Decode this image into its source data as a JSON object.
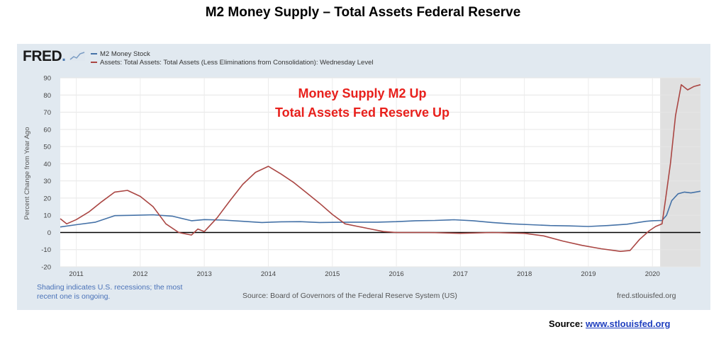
{
  "page_title": "M2 Money Supply – Total Assets Federal Reserve",
  "fred": {
    "logo_text": "FRED",
    "logo_dot": ".",
    "legend": [
      {
        "label": "M2 Money Stock",
        "color": "#4572a7"
      },
      {
        "label": "Assets: Total Assets: Total Assets (Less Eliminations from Consolidation): Wednesday Level",
        "color": "#aa4643"
      }
    ],
    "footer_note": "Shading indicates U.S. recessions; the most recent one is ongoing.",
    "footer_note_line1": "Shading indicates U.S. recessions; the most",
    "footer_note_line2": "recent one is ongoing.",
    "footer_source": "Source: Board of Governors of the Federal Reserve System (US)",
    "footer_url": "fred.stlouisfed.org"
  },
  "source_line": {
    "prefix": "Source: ",
    "link_text": "www.stlouisfed.org"
  },
  "chart_data": {
    "type": "line",
    "ylabel": "Percent Change from Year Ago",
    "ylim": [
      -20,
      90
    ],
    "yticks": [
      -20,
      -10,
      0,
      10,
      20,
      30,
      40,
      50,
      60,
      70,
      80,
      90
    ],
    "xlim": [
      2010.75,
      2020.75
    ],
    "xticks": [
      2011,
      2012,
      2013,
      2014,
      2015,
      2016,
      2017,
      2018,
      2019,
      2020
    ],
    "grid": true,
    "recession_shading": {
      "start": 2020.12,
      "end": 2020.75,
      "color": "#e0e0e0"
    },
    "zero_line": true,
    "annotations": [
      {
        "text": "Money Supply M2 Up",
        "color": "#e8201c"
      },
      {
        "text": "Total Assets Fed Reserve Up",
        "color": "#e8201c"
      }
    ],
    "series": [
      {
        "name": "M2 Money Stock",
        "color": "#4572a7",
        "x": [
          2010.75,
          2011.0,
          2011.3,
          2011.6,
          2011.9,
          2012.2,
          2012.5,
          2012.8,
          2013.0,
          2013.3,
          2013.6,
          2013.9,
          2014.2,
          2014.5,
          2014.8,
          2015.1,
          2015.4,
          2015.7,
          2016.0,
          2016.3,
          2016.6,
          2016.9,
          2017.2,
          2017.5,
          2017.8,
          2018.1,
          2018.4,
          2018.7,
          2019.0,
          2019.3,
          2019.6,
          2019.9,
          2020.0,
          2020.15,
          2020.22,
          2020.3,
          2020.4,
          2020.5,
          2020.6,
          2020.75
        ],
        "y": [
          3.2,
          4.5,
          6.0,
          9.8,
          10.0,
          10.3,
          9.5,
          6.8,
          7.5,
          7.2,
          6.5,
          5.8,
          6.2,
          6.3,
          5.8,
          5.9,
          6.0,
          6.0,
          6.3,
          6.8,
          7.0,
          7.4,
          6.8,
          5.8,
          5.0,
          4.5,
          4.0,
          3.8,
          3.5,
          4.0,
          4.8,
          6.5,
          6.8,
          7.0,
          10.0,
          18.5,
          22.5,
          23.5,
          23.0,
          24.0
        ]
      },
      {
        "name": "Assets: Total Assets: Total Assets (Less Eliminations from Consolidation): Wednesday Level",
        "color": "#aa4643",
        "x": [
          2010.75,
          2010.85,
          2011.0,
          2011.2,
          2011.4,
          2011.6,
          2011.8,
          2012.0,
          2012.2,
          2012.4,
          2012.6,
          2012.8,
          2012.9,
          2013.0,
          2013.2,
          2013.4,
          2013.6,
          2013.8,
          2014.0,
          2014.2,
          2014.4,
          2014.6,
          2014.8,
          2015.0,
          2015.2,
          2015.4,
          2015.6,
          2015.8,
          2016.0,
          2016.5,
          2017.0,
          2017.5,
          2018.0,
          2018.3,
          2018.6,
          2018.9,
          2019.2,
          2019.4,
          2019.5,
          2019.65,
          2019.8,
          2019.95,
          2020.05,
          2020.15,
          2020.2,
          2020.28,
          2020.36,
          2020.45,
          2020.55,
          2020.65,
          2020.75
        ],
        "y": [
          8.0,
          5.0,
          7.5,
          12.0,
          18.0,
          23.5,
          24.5,
          21.0,
          15.0,
          5.0,
          0.0,
          -1.5,
          2.0,
          0.5,
          8.5,
          18.5,
          28.0,
          35.0,
          38.5,
          34.0,
          29.0,
          23.0,
          17.0,
          10.5,
          5.0,
          3.5,
          2.0,
          0.5,
          0.0,
          0.0,
          -0.5,
          0.0,
          -0.5,
          -2.0,
          -5.0,
          -7.5,
          -9.5,
          -10.5,
          -11.0,
          -10.5,
          -4.0,
          1.0,
          3.5,
          5.0,
          18.0,
          40.0,
          68.0,
          86.0,
          83.0,
          85.0,
          86.0
        ]
      }
    ]
  }
}
